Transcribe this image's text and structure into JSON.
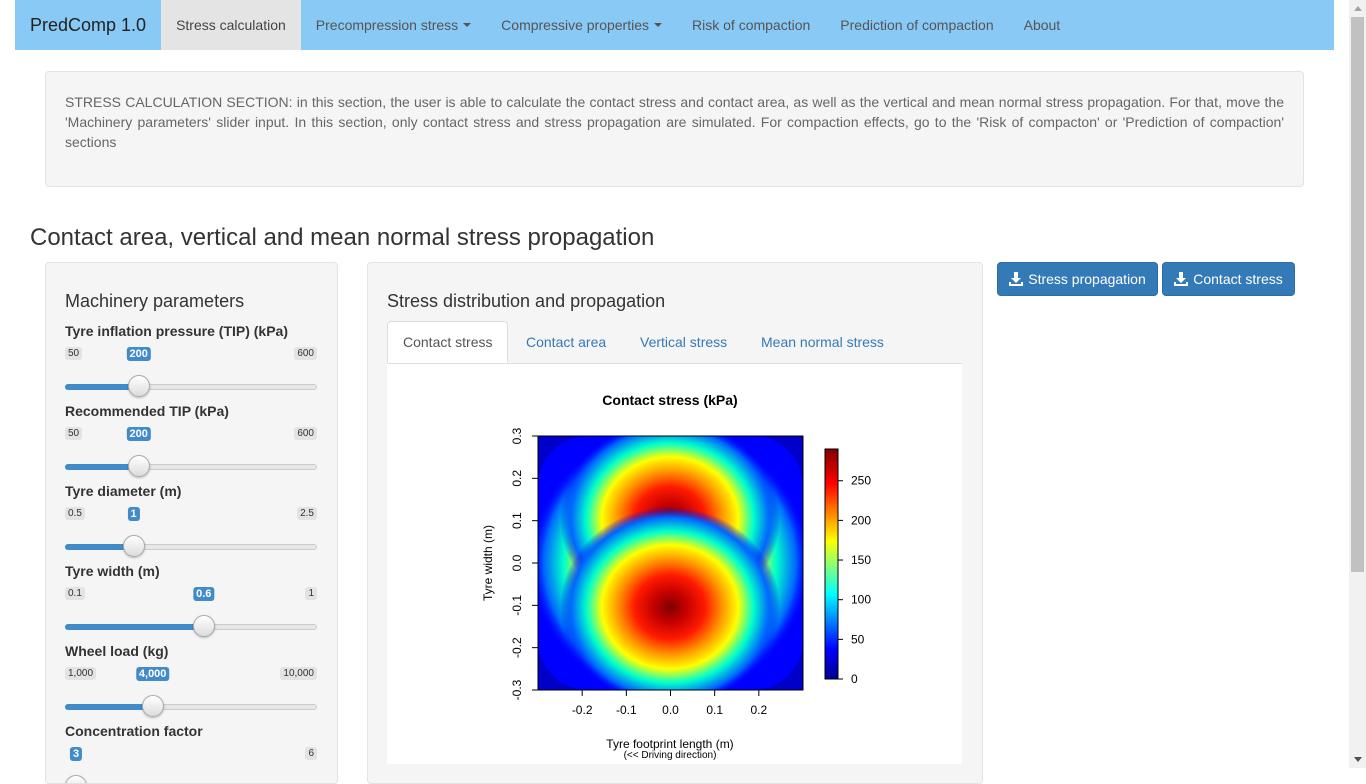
{
  "nav": {
    "brand": "PredComp 1.0",
    "items": [
      {
        "label": "Stress calculation"
      },
      {
        "label": "Precompression stress"
      },
      {
        "label": "Compressive properties"
      },
      {
        "label": "Risk of compaction"
      },
      {
        "label": "Prediction of compaction"
      },
      {
        "label": "About"
      }
    ]
  },
  "intro": {
    "text": "STRESS CALCULATION SECTION: in this section, the user is able to calculate the contact stress and contact area, as well as the vertical and mean normal stress propagation. For that, move the 'Machinery parameters' slider input. In this section, only contact stress and stress propagation are simulated. For compaction effects, go to the 'Risk of compacton' or 'Prediction of compaction' sections"
  },
  "section_title": "Contact area, vertical and mean normal stress propagation",
  "sidebar": {
    "title": "Machinery parameters",
    "sliders": [
      {
        "label": "Tyre inflation pressure (TIP) (kPa)",
        "min": "50",
        "max": "600",
        "value": "200",
        "min_v": 50,
        "max_v": 600,
        "v": 200
      },
      {
        "label": "Recommended TIP (kPa)",
        "min": "50",
        "max": "600",
        "value": "200",
        "min_v": 50,
        "max_v": 600,
        "v": 200
      },
      {
        "label": "Tyre diameter (m)",
        "min": "0.5",
        "max": "2.5",
        "value": "1",
        "min_v": 0.5,
        "max_v": 2.5,
        "v": 1
      },
      {
        "label": "Tyre width (m)",
        "min": "0.1",
        "max": "1",
        "value": "0.6",
        "min_v": 0.1,
        "max_v": 1,
        "v": 0.6
      },
      {
        "label": "Wheel load (kg)",
        "min": "1,000",
        "max": "10,000",
        "value": "4,000",
        "min_v": 1000,
        "max_v": 10000,
        "v": 4000
      },
      {
        "label": "Concentration factor",
        "min": "",
        "max": "6",
        "value": "3",
        "min_v": 3,
        "max_v": 6,
        "v": 3
      }
    ]
  },
  "main": {
    "title": "Stress distribution and propagation",
    "tabs": [
      {
        "label": "Contact stress"
      },
      {
        "label": "Contact area"
      },
      {
        "label": "Vertical stress"
      },
      {
        "label": "Mean normal stress"
      }
    ]
  },
  "buttons": {
    "stress_propagation": "Stress propagation",
    "contact_stress": "Contact stress"
  },
  "chart_data": {
    "type": "heatmap",
    "title": "Contact stress (kPa)",
    "xlabel": "Tyre footprint length (m)",
    "xlabel_note": "(<< Driving direction)",
    "ylabel": "Tyre width (m)",
    "xlim": [
      -0.3,
      0.3
    ],
    "ylim": [
      -0.3,
      0.3
    ],
    "x_ticks": [
      -0.2,
      -0.1,
      0.0,
      0.1,
      0.2
    ],
    "x_tick_labels": [
      "-0.2",
      "-0.1",
      "0.0",
      "0.1",
      "0.2"
    ],
    "y_ticks": [
      -0.3,
      -0.2,
      -0.1,
      0.0,
      0.1,
      0.2,
      0.3
    ],
    "y_tick_labels": [
      "-0.3",
      "-0.2",
      "-0.1",
      "0.0",
      "0.1",
      "0.2",
      "0.3"
    ],
    "colorbar": {
      "range": [
        0,
        290
      ],
      "ticks": [
        0,
        50,
        100,
        150,
        200,
        250
      ],
      "tick_labels": [
        "0",
        "50",
        "100",
        "150",
        "200",
        "250"
      ],
      "colors": [
        "#00008f",
        "#0000ff",
        "#00ffff",
        "#ffff00",
        "#ff0000",
        "#800000"
      ]
    },
    "peak_value": 290,
    "peak_locations": [
      [
        0.0,
        0.1
      ],
      [
        0.0,
        -0.1
      ]
    ]
  }
}
